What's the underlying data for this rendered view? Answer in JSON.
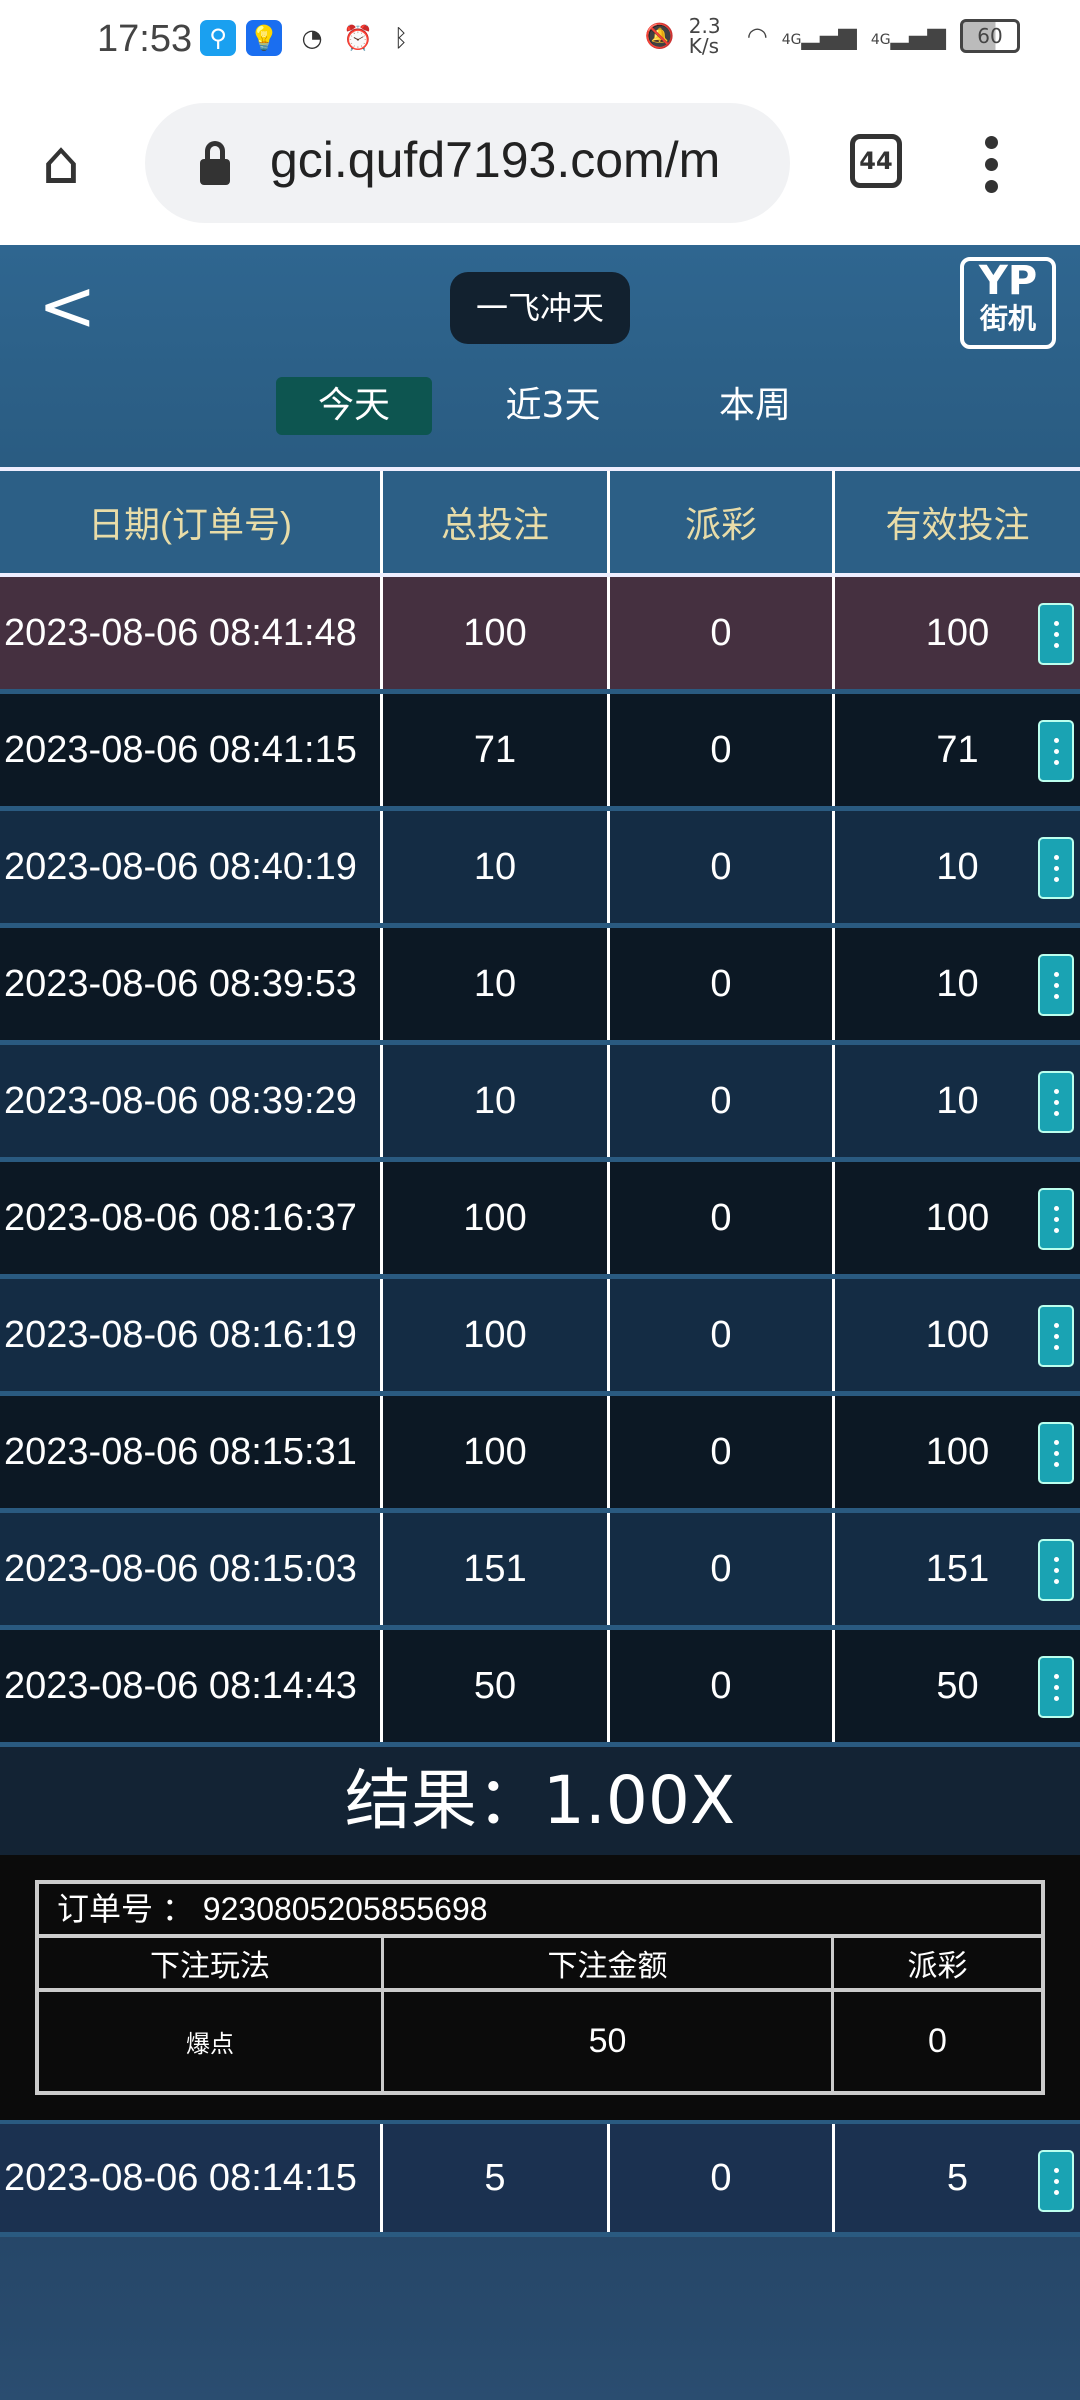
{
  "status_bar": {
    "time": "17:53",
    "net_speed": "2.3 K/s",
    "signal1": "4G",
    "signal2": "4G",
    "battery": "60"
  },
  "browser": {
    "url": "gci.qufd7193.com/m",
    "tab_count": "44"
  },
  "header": {
    "title": "一飞冲天",
    "logo_top": "YP",
    "logo_bottom": "街机"
  },
  "periods": [
    {
      "label": "今天",
      "active": true
    },
    {
      "label": "近3天"
    },
    {
      "label": "本周"
    }
  ],
  "table": {
    "columns": [
      "日期(订单号)",
      "总投注",
      "派彩",
      "有效投注"
    ],
    "rows": [
      {
        "date": "2023-08-06 08:41:48",
        "bet": "100",
        "payout": "0",
        "valid": "100"
      },
      {
        "date": "2023-08-06 08:41:15",
        "bet": "71",
        "payout": "0",
        "valid": "71"
      },
      {
        "date": "2023-08-06 08:40:19",
        "bet": "10",
        "payout": "0",
        "valid": "10"
      },
      {
        "date": "2023-08-06 08:39:53",
        "bet": "10",
        "payout": "0",
        "valid": "10"
      },
      {
        "date": "2023-08-06 08:39:29",
        "bet": "10",
        "payout": "0",
        "valid": "10"
      },
      {
        "date": "2023-08-06 08:16:37",
        "bet": "100",
        "payout": "0",
        "valid": "100"
      },
      {
        "date": "2023-08-06 08:16:19",
        "bet": "100",
        "payout": "0",
        "valid": "100"
      },
      {
        "date": "2023-08-06 08:15:31",
        "bet": "100",
        "payout": "0",
        "valid": "100"
      },
      {
        "date": "2023-08-06 08:15:03",
        "bet": "151",
        "payout": "0",
        "valid": "151"
      },
      {
        "date": "2023-08-06 08:14:43",
        "bet": "50",
        "payout": "0",
        "valid": "50"
      }
    ],
    "last_row": {
      "date": "2023-08-06 08:14:15",
      "bet": "5",
      "payout": "0",
      "valid": "5"
    }
  },
  "detail": {
    "result": "结果：1.00X",
    "order_label": "订单号  ：",
    "order_no": "9230805205855698",
    "columns": [
      "下注玩法",
      "下注金额",
      "派彩"
    ],
    "values": [
      "爆点",
      "50",
      "0"
    ]
  },
  "colors": {
    "highlight_row": "#453040",
    "menu_button": "#1aa3b3",
    "header_text": "#e8dca8",
    "active_tab": "#0d5550"
  }
}
